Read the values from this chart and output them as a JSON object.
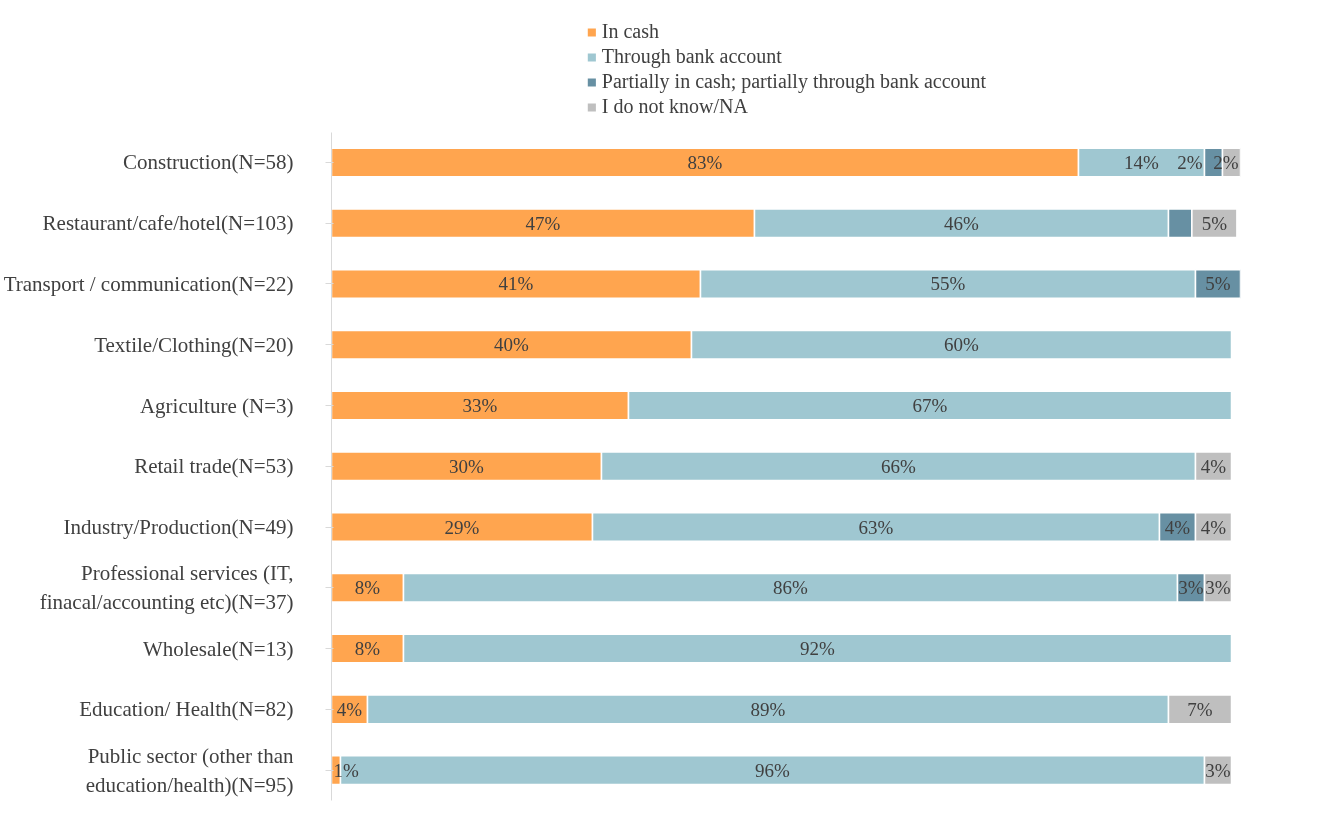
{
  "chart_data": {
    "type": "bar",
    "orientation": "horizontal",
    "stacked": true,
    "legend": "top",
    "grid": false,
    "tick_labels": "y",
    "xlim": [
      0,
      101
    ],
    "categories": [
      "Construction(N=58)",
      "Restaurant/cafe/hotel(N=103)",
      "Transport / communication(N=22)",
      "Textile/Clothing(N=20)",
      "Agriculture (N=3)",
      "Retail trade(N=53)",
      "Industry/Production(N=49)",
      "Professional services (IT, finacal/accounting etc)(N=37)",
      "Wholesale(N=13)",
      "Education/ Health(N=82)",
      "Public sector (other than education/health)(N=95)"
    ],
    "series": [
      {
        "name": "In cash",
        "color": "#ffa54f",
        "values": [
          83,
          47,
          41,
          40,
          33,
          30,
          29,
          8,
          8,
          4,
          1
        ],
        "value_labels": [
          "83%",
          "47%",
          "41%",
          "40%",
          "33%",
          "30%",
          "29%",
          "8%",
          "8%",
          "4%",
          "1%"
        ]
      },
      {
        "name": "Through bank account",
        "color": "#9fc7d1",
        "values": [
          14,
          46,
          55,
          60,
          67,
          66,
          63,
          86,
          92,
          89,
          96
        ],
        "value_labels": [
          "14%",
          "46%",
          "55%",
          "60%",
          "67%",
          "66%",
          "63%",
          "86%",
          "92%",
          "89%",
          "96%"
        ]
      },
      {
        "name": "Partially in cash; partially through bank account",
        "color": "#6790a3",
        "values": [
          2,
          2.6,
          5,
          null,
          null,
          null,
          4,
          3,
          null,
          null,
          null
        ],
        "value_labels": [
          "2%",
          null,
          "5%",
          null,
          null,
          null,
          "4%",
          "3%",
          null,
          null,
          null
        ]
      },
      {
        "name": "I do not know/NA",
        "color": "#bfbfbf",
        "values": [
          2,
          5,
          null,
          null,
          null,
          4,
          4,
          3,
          null,
          7,
          3
        ],
        "value_labels": [
          "2%",
          "5%",
          null,
          null,
          null,
          "4%",
          "4%",
          "3%",
          null,
          "7%",
          "3%"
        ]
      }
    ]
  }
}
